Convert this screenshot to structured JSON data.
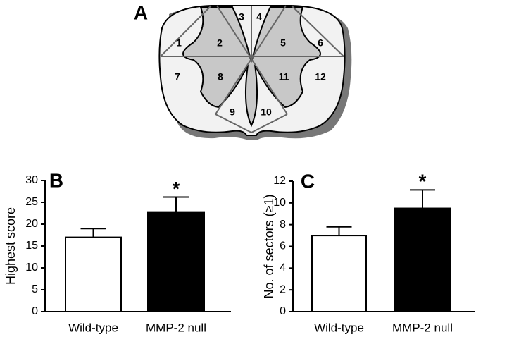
{
  "diagram": {
    "label": "A",
    "sectors": [
      "1",
      "2",
      "3",
      "4",
      "5",
      "6",
      "7",
      "8",
      "9",
      "10",
      "11",
      "12"
    ]
  },
  "chart_data": [
    {
      "type": "bar",
      "panel": "B",
      "ylabel": "Highest score",
      "categories": [
        "Wild-type",
        "MMP-2 null"
      ],
      "values": [
        17,
        22.8
      ],
      "errors": [
        2,
        3.4
      ],
      "colors": [
        "#ffffff",
        "#000000"
      ],
      "annotation": "*",
      "ylim": [
        0,
        30
      ],
      "yticks": [
        0,
        5,
        10,
        15,
        20,
        25,
        30
      ]
    },
    {
      "type": "bar",
      "panel": "C",
      "ylabel": "No. of sectors (≥1)",
      "categories": [
        "Wild-type",
        "MMP-2 null"
      ],
      "values": [
        7,
        9.5
      ],
      "errors": [
        0.8,
        1.7
      ],
      "colors": [
        "#ffffff",
        "#000000"
      ],
      "annotation": "*",
      "ylim": [
        0,
        12
      ],
      "yticks": [
        0,
        2,
        4,
        6,
        8,
        10,
        12
      ]
    }
  ]
}
